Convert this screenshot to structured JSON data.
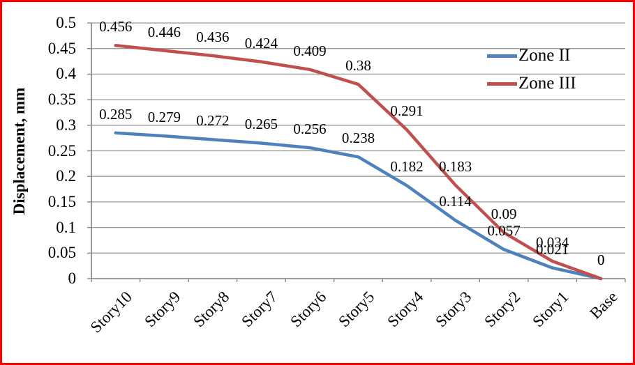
{
  "frame": {
    "border_color": "#FE0000",
    "background_color": "#FFFFFF",
    "gridline_color": "#9A9A9A",
    "axis_color": "#7F7F7F",
    "text_color": "#000000"
  },
  "chart_data": {
    "type": "line",
    "title": "",
    "xlabel": "",
    "ylabel": "Displacement, mm",
    "categories": [
      "Story10",
      "Story9",
      "Story8",
      "Story7",
      "Story6",
      "Story5",
      "Story4",
      "Story3",
      "Story2",
      "Story1",
      "Base"
    ],
    "series": [
      {
        "name": "Zone II",
        "color": "#4F81BD",
        "values": [
          0.285,
          0.279,
          0.272,
          0.265,
          0.256,
          0.238,
          0.182,
          0.114,
          0.057,
          0.021,
          0
        ]
      },
      {
        "name": "Zone III",
        "color": "#C0504D",
        "values": [
          0.456,
          0.446,
          0.436,
          0.424,
          0.409,
          0.38,
          0.291,
          0.183,
          0.09,
          0.034,
          0
        ]
      }
    ],
    "ylim": [
      0,
      0.5
    ],
    "ytick_step": 0.05,
    "yticks": [
      "0",
      "0.05",
      "0.1",
      "0.15",
      "0.2",
      "0.25",
      "0.3",
      "0.35",
      "0.4",
      "0.45",
      "0.5"
    ],
    "grid": true,
    "data_labels": true,
    "x_label_rotation": -45,
    "legend_position": "top-right",
    "legend": [
      "Zone II",
      "Zone III"
    ]
  }
}
